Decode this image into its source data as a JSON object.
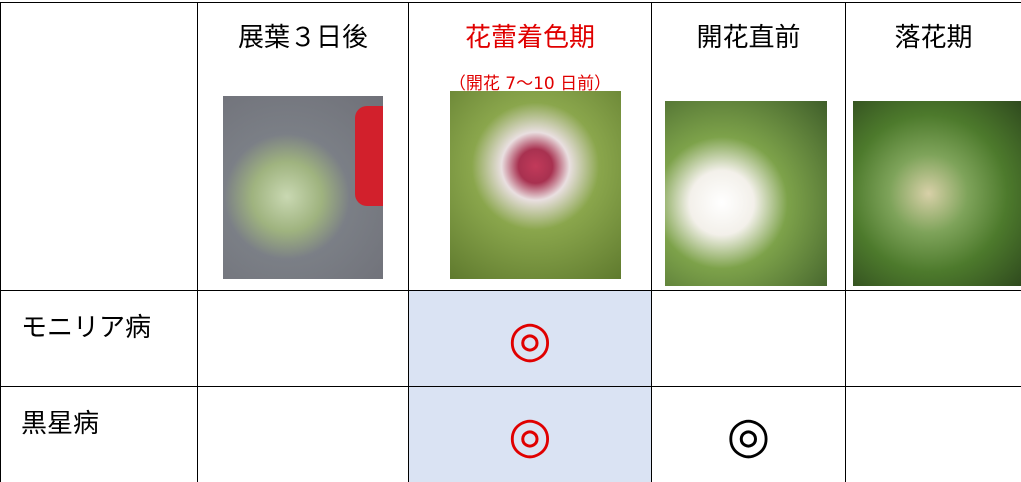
{
  "table": {
    "columns": [
      {
        "title": "展葉３日後"
      },
      {
        "title": "花蕾着色期",
        "subtitle": "（開花 7～10 日前）"
      },
      {
        "title": "開花直前"
      },
      {
        "title": "落花期"
      }
    ],
    "rows": [
      {
        "label": "モニリア病",
        "marks": [
          null,
          "◎",
          null,
          null
        ]
      },
      {
        "label": "黒星病",
        "marks": [
          null,
          "◎",
          "◎",
          null
        ]
      }
    ]
  }
}
